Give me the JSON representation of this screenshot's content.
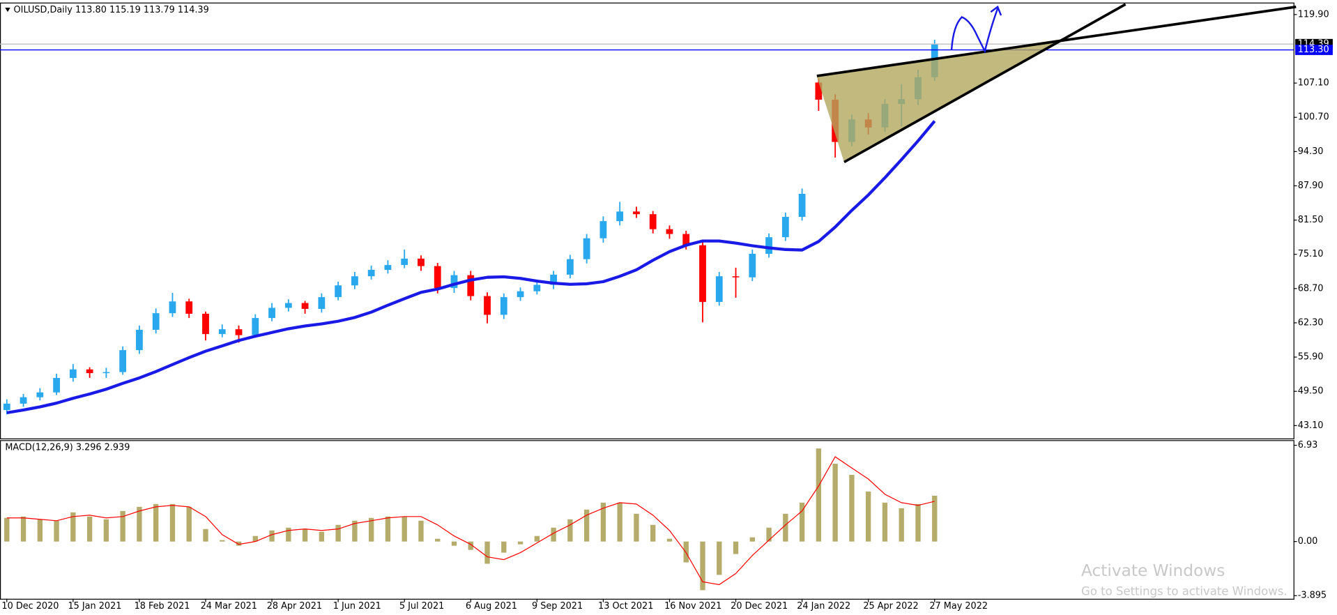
{
  "chart_data": [
    {
      "type": "candlestick",
      "title": "OILUSD,Daily 113.80 115.19 113.79 114.39",
      "categories": [
        "10 Dec 2020",
        null,
        null,
        null,
        "15 Jan 2021",
        null,
        null,
        null,
        "18 Feb 2021",
        null,
        null,
        null,
        "24 Mar 2021",
        null,
        null,
        null,
        "28 Apr 2021",
        null,
        null,
        null,
        "1 Jun 2021",
        null,
        null,
        null,
        "5 Jul 2021",
        null,
        null,
        null,
        "6 Aug 2021",
        null,
        null,
        null,
        "9 Sep 2021",
        null,
        null,
        null,
        "13 Oct 2021",
        null,
        null,
        null,
        "16 Nov 2021",
        null,
        null,
        null,
        "20 Dec 2021",
        null,
        null,
        null,
        "24 Jan 2022",
        null,
        null,
        null,
        "25 Apr 2022",
        null,
        null,
        null,
        "27 May 2022"
      ],
      "open": [
        46.0,
        47.2,
        48.4,
        49.3,
        52.0,
        53.6,
        52.9,
        53.1,
        57.2,
        61.0,
        64.1,
        66.3,
        64.0,
        60.2,
        61.1,
        60.0,
        63.2,
        65.1,
        66.0,
        64.9,
        67.1,
        69.3,
        71.0,
        72.2,
        73.1,
        74.3,
        72.9,
        68.8,
        71.2,
        67.3,
        63.8,
        67.1,
        68.2,
        69.4,
        71.3,
        74.2,
        78.1,
        81.3,
        83.1,
        82.6,
        79.8,
        78.9,
        76.8,
        66.2,
        71.0,
        70.8,
        75.2,
        78.3,
        82.1,
        107.2,
        104.0,
        96.1,
        100.3,
        98.8,
        103.2,
        104.1,
        108.2
      ],
      "high": [
        48.0,
        49.0,
        50.1,
        52.8,
        54.6,
        54.0,
        53.9,
        57.9,
        61.8,
        65.0,
        67.9,
        66.8,
        64.4,
        62.0,
        61.8,
        63.9,
        66.0,
        66.7,
        66.4,
        67.8,
        70.0,
        71.8,
        73.0,
        74.0,
        76.0,
        74.9,
        73.5,
        72.0,
        72.0,
        68.0,
        67.8,
        68.9,
        70.1,
        72.0,
        75.0,
        78.9,
        82.2,
        84.9,
        84.0,
        83.2,
        80.5,
        79.5,
        77.6,
        71.8,
        72.6,
        76.0,
        79.0,
        82.9,
        87.4,
        108.0,
        105.0,
        101.2,
        101.5,
        104.1,
        106.9,
        109.6,
        115.19
      ],
      "low": [
        45.2,
        46.6,
        47.8,
        48.8,
        51.3,
        52.0,
        52.0,
        52.6,
        56.5,
        60.3,
        63.4,
        63.2,
        59.0,
        59.6,
        58.6,
        59.5,
        62.6,
        64.4,
        64.0,
        64.2,
        66.5,
        68.6,
        70.4,
        71.5,
        72.5,
        72.0,
        67.8,
        67.9,
        66.5,
        62.2,
        63.0,
        66.4,
        67.6,
        68.6,
        70.6,
        73.4,
        77.3,
        80.5,
        81.9,
        79.0,
        78.0,
        76.0,
        62.4,
        65.5,
        67.0,
        70.1,
        74.5,
        77.6,
        81.4,
        101.9,
        93.2,
        95.3,
        97.5,
        98.0,
        99.0,
        103.0,
        107.5
      ],
      "close": [
        47.2,
        48.4,
        49.3,
        52.0,
        53.6,
        52.9,
        53.1,
        57.2,
        61.0,
        64.1,
        66.3,
        64.0,
        60.2,
        61.1,
        60.0,
        63.2,
        65.1,
        66.0,
        64.9,
        67.1,
        69.3,
        71.0,
        72.2,
        73.1,
        74.3,
        72.9,
        68.8,
        71.2,
        67.3,
        63.8,
        67.1,
        68.2,
        69.4,
        71.3,
        74.2,
        78.1,
        81.3,
        83.1,
        82.6,
        79.8,
        78.9,
        76.8,
        66.2,
        71.0,
        70.8,
        75.2,
        78.3,
        82.1,
        86.4,
        104.0,
        96.1,
        100.3,
        98.8,
        103.2,
        104.1,
        108.2,
        114.39
      ],
      "up_color": "#2aa8ee",
      "down_color": "#ff0000",
      "lines": [
        {
          "color": "#1a1ae6",
          "values": [
            45.5,
            46.0,
            46.6,
            47.3,
            48.2,
            49.0,
            49.9,
            51.0,
            52.0,
            53.2,
            54.5,
            55.8,
            57.0,
            58.0,
            59.0,
            59.8,
            60.5,
            61.2,
            61.7,
            62.1,
            62.6,
            63.3,
            64.3,
            65.6,
            66.8,
            68.0,
            68.6,
            69.5,
            70.3,
            70.8,
            70.9,
            70.6,
            70.1,
            69.7,
            69.5,
            69.6,
            70.0,
            71.0,
            72.2,
            74.0,
            75.6,
            76.8,
            77.6,
            77.6,
            77.2,
            76.7,
            76.3,
            76.0,
            75.9,
            77.5,
            80.2,
            83.3,
            86.2,
            89.4,
            92.8,
            96.3,
            100.0
          ]
        }
      ],
      "hlines": [
        {
          "value": 114.39,
          "label": "114.39",
          "color": "#c0c0c0",
          "label_bg": "#000000"
        },
        {
          "value": 113.3,
          "label": "113.30",
          "color": "#0000ff",
          "label_bg": "#0000ff"
        }
      ],
      "ylim": [
        40.7,
        122.14
      ],
      "yticks": [
        {
          "value": 43.1,
          "label": "43.10"
        },
        {
          "value": 49.5,
          "label": "49.50"
        },
        {
          "value": 55.9,
          "label": "55.90"
        },
        {
          "value": 62.3,
          "label": "62.30"
        },
        {
          "value": 68.7,
          "label": "68.70"
        },
        {
          "value": 75.1,
          "label": "75.10"
        },
        {
          "value": 81.5,
          "label": "81.50"
        },
        {
          "value": 87.9,
          "label": "87.90"
        },
        {
          "value": 94.3,
          "label": "94.30"
        },
        {
          "value": 100.7,
          "label": "100.70"
        },
        {
          "value": 107.1,
          "label": "107.10"
        },
        {
          "value": 119.9,
          "label": "119.90"
        }
      ]
    },
    {
      "type": "macd",
      "title": "MACD(12,26,9) 3.296 2.939",
      "histogram": {
        "color": "#b5ab6b",
        "values": [
          1.7,
          1.8,
          1.6,
          1.5,
          2.1,
          1.8,
          1.6,
          2.2,
          2.5,
          2.7,
          2.7,
          2.5,
          0.9,
          0.1,
          -0.3,
          0.4,
          0.8,
          1.0,
          0.9,
          0.7,
          1.2,
          1.5,
          1.7,
          1.8,
          1.8,
          1.5,
          0.2,
          -0.3,
          -0.6,
          -1.6,
          -0.8,
          -0.2,
          0.4,
          1.0,
          1.6,
          2.3,
          2.8,
          2.8,
          2.0,
          1.2,
          0.2,
          -1.5,
          -3.5,
          -2.4,
          -0.9,
          0.3,
          1.0,
          2.0,
          2.8,
          6.7,
          5.6,
          4.8,
          3.6,
          2.8,
          2.4,
          2.7,
          3.3
        ]
      },
      "signal": {
        "color": "#ff0000",
        "values": [
          1.7,
          1.7,
          1.6,
          1.5,
          1.8,
          1.9,
          1.7,
          1.8,
          2.2,
          2.5,
          2.6,
          2.5,
          1.8,
          0.5,
          -0.2,
          0.0,
          0.5,
          0.8,
          0.9,
          0.8,
          0.9,
          1.3,
          1.5,
          1.7,
          1.8,
          1.8,
          1.2,
          0.4,
          -0.2,
          -1.1,
          -1.3,
          -0.8,
          -0.1,
          0.6,
          1.2,
          1.9,
          2.4,
          2.8,
          2.7,
          1.9,
          0.8,
          -0.8,
          -2.9,
          -3.1,
          -2.3,
          -1.0,
          0.1,
          1.2,
          2.2,
          4.0,
          6.1,
          5.3,
          4.5,
          3.4,
          2.8,
          2.6,
          2.9
        ]
      },
      "ylim": [
        -4.12,
        7.3
      ],
      "yticks": [
        6.93,
        {
          "value": 0,
          "label": "0.00"
        },
        -3.895
      ]
    }
  ],
  "watermark": {
    "title": "Activate Windows",
    "subtitle": "Go to Settings to activate Windows."
  }
}
